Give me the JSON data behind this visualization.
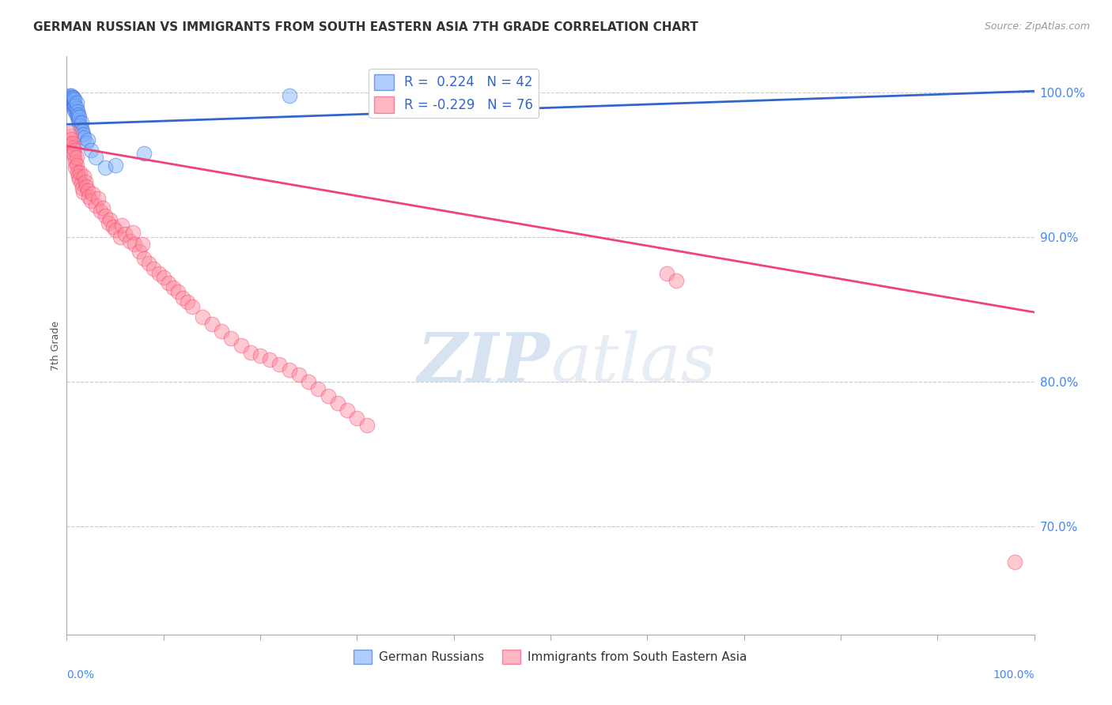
{
  "title": "GERMAN RUSSIAN VS IMMIGRANTS FROM SOUTH EASTERN ASIA 7TH GRADE CORRELATION CHART",
  "source_text": "Source: ZipAtlas.com",
  "ylabel": "7th Grade",
  "ytick_labels": [
    "100.0%",
    "90.0%",
    "80.0%",
    "70.0%"
  ],
  "ytick_values": [
    1.0,
    0.9,
    0.8,
    0.7
  ],
  "xlim": [
    0.0,
    1.0
  ],
  "ylim": [
    0.625,
    1.025
  ],
  "color_blue": "#7aadff",
  "color_pink": "#ff8899",
  "color_blue_line": "#3366cc",
  "color_pink_line": "#ee4477",
  "watermark_zip": "ZIP",
  "watermark_atlas": "atlas",
  "blue_scatter_x": [
    0.002,
    0.003,
    0.003,
    0.004,
    0.004,
    0.005,
    0.005,
    0.005,
    0.006,
    0.006,
    0.006,
    0.007,
    0.007,
    0.007,
    0.008,
    0.008,
    0.008,
    0.009,
    0.009,
    0.01,
    0.01,
    0.01,
    0.011,
    0.011,
    0.012,
    0.012,
    0.013,
    0.013,
    0.014,
    0.015,
    0.015,
    0.016,
    0.017,
    0.018,
    0.02,
    0.022,
    0.025,
    0.03,
    0.04,
    0.05,
    0.08,
    0.23
  ],
  "blue_scatter_y": [
    0.997,
    0.998,
    0.996,
    0.995,
    0.997,
    0.993,
    0.996,
    0.998,
    0.992,
    0.995,
    0.997,
    0.99,
    0.993,
    0.996,
    0.988,
    0.992,
    0.995,
    0.987,
    0.991,
    0.985,
    0.989,
    0.993,
    0.983,
    0.987,
    0.981,
    0.985,
    0.979,
    0.983,
    0.977,
    0.975,
    0.979,
    0.973,
    0.971,
    0.969,
    0.965,
    0.967,
    0.96,
    0.955,
    0.948,
    0.95,
    0.958,
    0.998
  ],
  "pink_scatter_x": [
    0.003,
    0.004,
    0.005,
    0.005,
    0.006,
    0.007,
    0.007,
    0.008,
    0.008,
    0.009,
    0.009,
    0.01,
    0.01,
    0.011,
    0.012,
    0.013,
    0.014,
    0.015,
    0.016,
    0.017,
    0.018,
    0.019,
    0.02,
    0.022,
    0.023,
    0.025,
    0.027,
    0.03,
    0.032,
    0.035,
    0.037,
    0.04,
    0.043,
    0.045,
    0.048,
    0.05,
    0.055,
    0.057,
    0.06,
    0.065,
    0.068,
    0.07,
    0.075,
    0.078,
    0.08,
    0.085,
    0.09,
    0.095,
    0.1,
    0.105,
    0.11,
    0.115,
    0.12,
    0.125,
    0.13,
    0.14,
    0.15,
    0.16,
    0.17,
    0.18,
    0.19,
    0.2,
    0.21,
    0.22,
    0.23,
    0.24,
    0.25,
    0.26,
    0.27,
    0.28,
    0.29,
    0.3,
    0.31,
    0.62,
    0.63,
    0.98
  ],
  "pink_scatter_y": [
    0.965,
    0.97,
    0.972,
    0.968,
    0.965,
    0.962,
    0.958,
    0.955,
    0.96,
    0.952,
    0.948,
    0.955,
    0.95,
    0.945,
    0.942,
    0.94,
    0.945,
    0.937,
    0.934,
    0.931,
    0.942,
    0.938,
    0.935,
    0.932,
    0.928,
    0.925,
    0.93,
    0.922,
    0.927,
    0.918,
    0.92,
    0.915,
    0.91,
    0.912,
    0.907,
    0.905,
    0.9,
    0.908,
    0.902,
    0.897,
    0.903,
    0.895,
    0.89,
    0.895,
    0.885,
    0.882,
    0.878,
    0.875,
    0.872,
    0.868,
    0.865,
    0.862,
    0.858,
    0.855,
    0.852,
    0.845,
    0.84,
    0.835,
    0.83,
    0.825,
    0.82,
    0.818,
    0.815,
    0.812,
    0.808,
    0.805,
    0.8,
    0.795,
    0.79,
    0.785,
    0.78,
    0.775,
    0.77,
    0.875,
    0.87,
    0.675
  ],
  "blue_trendline_x": [
    0.0,
    1.0
  ],
  "blue_trendline_y": [
    0.978,
    1.001
  ],
  "pink_trendline_x": [
    0.0,
    1.0
  ],
  "pink_trendline_y": [
    0.963,
    0.848
  ]
}
